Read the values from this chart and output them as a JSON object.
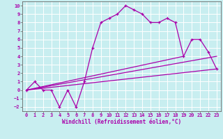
{
  "xlabel": "Windchill (Refroidissement éolien,°C)",
  "xlim": [
    -0.5,
    23.5
  ],
  "ylim": [
    -2.5,
    10.5
  ],
  "xticks": [
    0,
    1,
    2,
    3,
    4,
    5,
    6,
    7,
    8,
    9,
    10,
    11,
    12,
    13,
    14,
    15,
    16,
    17,
    18,
    19,
    20,
    21,
    22,
    23
  ],
  "yticks": [
    -2,
    -1,
    0,
    1,
    2,
    3,
    4,
    5,
    6,
    7,
    8,
    9,
    10
  ],
  "bg_color": "#c8eef0",
  "grid_color": "#ffffff",
  "line_color": "#aa00aa",
  "main_x": [
    0,
    1,
    2,
    3,
    4,
    5,
    6,
    7,
    8,
    9,
    10,
    11,
    12,
    13,
    14,
    15,
    16,
    17,
    18,
    19,
    20,
    21,
    22,
    23
  ],
  "main_y": [
    0,
    1,
    0,
    0,
    -2,
    0,
    -2,
    1,
    5,
    8,
    8.5,
    9,
    10,
    9.5,
    9,
    8,
    8,
    8.5,
    8,
    4,
    6,
    6,
    4.5,
    2.5
  ],
  "trend1_x": [
    0,
    23
  ],
  "trend1_y": [
    0,
    2.5
  ],
  "trend2_x": [
    0,
    23
  ],
  "trend2_y": [
    0,
    4.0
  ],
  "trend3_x": [
    0,
    19
  ],
  "trend3_y": [
    0,
    4.0
  ]
}
